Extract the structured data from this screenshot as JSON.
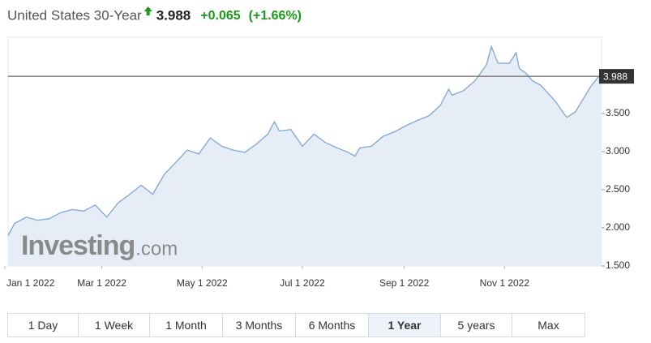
{
  "chart_data": {
    "type": "area",
    "title": "United States 30-Year",
    "last_value": 3.988,
    "change": "+0.065",
    "change_pct": "(+1.66%)",
    "watermark": {
      "brand": "Investing",
      "suffix": ".com"
    },
    "color": "#7ea7d3",
    "fill": "#e6edf6",
    "x": [
      "2022-01-03",
      "2022-01-07",
      "2022-01-14",
      "2022-01-21",
      "2022-01-28",
      "2022-02-04",
      "2022-02-11",
      "2022-02-18",
      "2022-02-25",
      "2022-03-04",
      "2022-03-11",
      "2022-03-18",
      "2022-03-25",
      "2022-04-01",
      "2022-04-08",
      "2022-04-15",
      "2022-04-22",
      "2022-04-29",
      "2022-05-06",
      "2022-05-13",
      "2022-05-20",
      "2022-05-27",
      "2022-06-03",
      "2022-06-10",
      "2022-06-14",
      "2022-06-17",
      "2022-06-24",
      "2022-07-01",
      "2022-07-08",
      "2022-07-15",
      "2022-07-22",
      "2022-07-29",
      "2022-08-02",
      "2022-08-05",
      "2022-08-12",
      "2022-08-19",
      "2022-08-26",
      "2022-09-02",
      "2022-09-09",
      "2022-09-16",
      "2022-09-23",
      "2022-09-28",
      "2022-09-30",
      "2022-10-07",
      "2022-10-14",
      "2022-10-21",
      "2022-10-24",
      "2022-10-28",
      "2022-11-04",
      "2022-11-08",
      "2022-11-10",
      "2022-11-14",
      "2022-11-18",
      "2022-11-23",
      "2022-12-02",
      "2022-12-07",
      "2022-12-09",
      "2022-12-14",
      "2022-12-16",
      "2022-12-21",
      "2022-12-23",
      "2022-12-28",
      "2022-12-30"
    ],
    "values": [
      1.9,
      2.06,
      2.14,
      2.1,
      2.12,
      2.2,
      2.24,
      2.22,
      2.3,
      2.14,
      2.33,
      2.44,
      2.56,
      2.44,
      2.7,
      2.86,
      3.02,
      2.97,
      3.18,
      3.07,
      3.02,
      2.99,
      3.1,
      3.23,
      3.39,
      3.27,
      3.29,
      3.07,
      3.23,
      3.12,
      3.05,
      2.99,
      2.94,
      3.05,
      3.07,
      3.2,
      3.26,
      3.34,
      3.41,
      3.47,
      3.61,
      3.82,
      3.74,
      3.8,
      3.93,
      4.14,
      4.38,
      4.16,
      4.16,
      4.3,
      4.09,
      4.03,
      3.93,
      3.87,
      3.66,
      3.5,
      3.45,
      3.52,
      3.59,
      3.77,
      3.84,
      3.98,
      3.988
    ],
    "xlim": [
      "2022-01-03",
      "2022-12-30"
    ],
    "xticks": [
      {
        "value": "2022-01-01",
        "label": "Jan 1 2022"
      },
      {
        "value": "2022-03-01",
        "label": "Mar 1 2022"
      },
      {
        "value": "2022-05-01",
        "label": "May 1 2022"
      },
      {
        "value": "2022-07-01",
        "label": "Jul 1 2022"
      },
      {
        "value": "2022-09-01",
        "label": "Sep 1 2022"
      },
      {
        "value": "2022-11-01",
        "label": "Nov 1 2022"
      }
    ],
    "ylim": [
      1.5,
      4.5
    ],
    "yticks": [
      {
        "value": 1.5,
        "label": "1.500"
      },
      {
        "value": 2,
        "label": "2.000"
      },
      {
        "value": 2.5,
        "label": "2.500"
      },
      {
        "value": 3,
        "label": "3.000"
      },
      {
        "value": 3.5,
        "label": "3.500"
      }
    ],
    "ranges": [
      "1 Day",
      "1 Week",
      "1 Month",
      "3 Months",
      "6 Months",
      "1 Year",
      "5 years",
      "Max"
    ],
    "selected_range": 5
  }
}
